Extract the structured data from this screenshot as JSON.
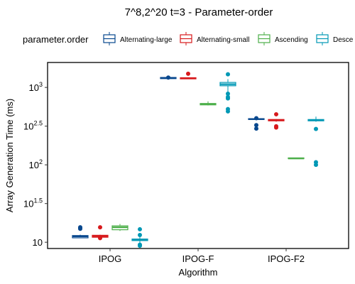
{
  "chart_data": {
    "type": "box",
    "title": "7^8,2^20 t=3 - Parameter-order",
    "xlabel": "Algorithm",
    "ylabel": "Array Generation Time (ms)",
    "y_scale": "log10",
    "ylim": [
      8.3,
      2100
    ],
    "y_ticks": [
      {
        "value": 10,
        "base": "10",
        "exp": ""
      },
      {
        "value": 31.6,
        "base": "10",
        "exp": "1.5"
      },
      {
        "value": 100,
        "base": "10",
        "exp": "2"
      },
      {
        "value": 316,
        "base": "10",
        "exp": "2.5"
      },
      {
        "value": 1000,
        "base": "10",
        "exp": "3"
      }
    ],
    "categories": [
      "IPOG",
      "IPOG-F",
      "IPOG-F2"
    ],
    "legend": {
      "title": "parameter.order",
      "position": "top",
      "entries": [
        "Alternating-large",
        "Alternating-small",
        "Ascending",
        "Descending"
      ],
      "visible_entries": [
        "Alternating-large",
        "Alternating-small",
        "Ascending",
        "Desce"
      ]
    },
    "series": [
      {
        "name": "Alternating-large",
        "color": "#08488e",
        "boxes": [
          {
            "q1": 11.4,
            "median": 11.9,
            "q3": 12.2,
            "wlo": 11.3,
            "whi": 12.5,
            "outliers": [
              14.9,
              15.3,
              15.6
            ]
          },
          {
            "q1": 1300,
            "median": 1320,
            "q3": 1345,
            "wlo": 1285,
            "whi": 1360,
            "outliers": [
              1340
            ]
          },
          {
            "q1": 385,
            "median": 390,
            "q3": 395,
            "wlo": 380,
            "whi": 400,
            "outliers": [
              326,
              294,
              400
            ]
          }
        ]
      },
      {
        "name": "Alternating-small",
        "color": "#d7191c",
        "boxes": [
          {
            "q1": 11.6,
            "median": 12.0,
            "q3": 12.3,
            "wlo": 11.4,
            "whi": 12.5,
            "outliers": [
              11.3,
              11.5,
              15.6
            ]
          },
          {
            "q1": 1290,
            "median": 1315,
            "q3": 1335,
            "wlo": 1280,
            "whi": 1350,
            "outliers": [
              1500
            ]
          },
          {
            "q1": 370,
            "median": 380,
            "q3": 385,
            "wlo": 360,
            "whi": 390,
            "outliers": [
              315,
              303,
              450
            ]
          }
        ]
      },
      {
        "name": "Ascending",
        "color": "#4daf4a",
        "boxes": [
          {
            "q1": 14.5,
            "median": 15.6,
            "q3": 16.3,
            "wlo": 14.0,
            "whi": 17.2,
            "outliers": []
          },
          {
            "q1": 595,
            "median": 610,
            "q3": 620,
            "wlo": 585,
            "whi": 660,
            "outliers": []
          },
          {
            "q1": 120,
            "median": 121,
            "q3": 123,
            "wlo": 119,
            "whi": 124,
            "outliers": []
          }
        ]
      },
      {
        "name": "Descending",
        "color": "#0098b5",
        "boxes": [
          {
            "q1": 10.5,
            "median": 10.8,
            "q3": 11.0,
            "wlo": 9.2,
            "whi": 12.6,
            "outliers": [
              9.0,
              9.3,
              12.4,
              14.7
            ]
          },
          {
            "q1": 1050,
            "median": 1100,
            "q3": 1160,
            "wlo": 820,
            "whi": 1280,
            "outliers": [
              830,
              750,
              720,
              525,
              490,
              1480
            ]
          },
          {
            "q1": 370,
            "median": 378,
            "q3": 385,
            "wlo": 360,
            "whi": 420,
            "outliers": [
              291,
              108,
              100
            ]
          }
        ]
      }
    ]
  }
}
